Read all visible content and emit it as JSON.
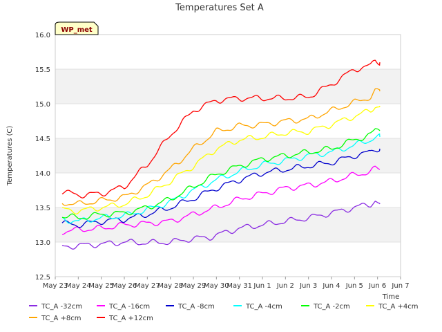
{
  "chart_data": {
    "type": "line",
    "title": "Temperatures Set A",
    "ylabel": "Temperatures (C)",
    "xlabel": "Time",
    "badge": "WP_met",
    "ylim": [
      12.5,
      16.0
    ],
    "xlim": [
      0,
      15
    ],
    "yticks": [
      12.5,
      13.0,
      13.5,
      14.0,
      14.5,
      15.0,
      15.5,
      16.0
    ],
    "xtick_labels": [
      "May 23",
      "May 24",
      "May 25",
      "May 26",
      "May 27",
      "May 28",
      "May 29",
      "May 30",
      "May 31",
      "Jun 1",
      "Jun 2",
      "Jun 3",
      "Jun 4",
      "Jun 5",
      "Jun 6",
      "Jun 7"
    ],
    "grid": true,
    "legend_position": "bottom",
    "series": [
      {
        "name": "TC_A -32cm",
        "color": "#8a2be2",
        "x": [
          0.3,
          1,
          2,
          3,
          4,
          5,
          6,
          6.7,
          7,
          8,
          9,
          10,
          11,
          12,
          13,
          13.7,
          13.9,
          14.1
        ],
        "y": [
          12.93,
          12.95,
          12.97,
          13.0,
          12.99,
          13.0,
          13.05,
          13.07,
          13.1,
          13.2,
          13.25,
          13.3,
          13.35,
          13.42,
          13.5,
          13.55,
          13.6,
          13.55
        ]
      },
      {
        "name": "TC_A -16cm",
        "color": "#ff00ff",
        "x": [
          0.3,
          1,
          2,
          3,
          4,
          5,
          6,
          7,
          8,
          9,
          10,
          11,
          12,
          13,
          13.7,
          13.9,
          14.1
        ],
        "y": [
          13.15,
          13.18,
          13.2,
          13.25,
          13.27,
          13.3,
          13.4,
          13.5,
          13.62,
          13.7,
          13.78,
          13.82,
          13.88,
          13.97,
          14.02,
          14.06,
          14.05
        ]
      },
      {
        "name": "TC_A -8cm",
        "color": "#0000cd",
        "x": [
          0.3,
          1,
          2,
          3,
          4,
          5,
          6,
          7,
          8,
          9,
          10,
          11,
          12,
          13,
          13.7,
          13.9,
          14.1
        ],
        "y": [
          13.27,
          13.25,
          13.3,
          13.33,
          13.4,
          13.5,
          13.63,
          13.78,
          13.9,
          14.0,
          14.05,
          14.1,
          14.15,
          14.25,
          14.3,
          14.35,
          14.35
        ]
      },
      {
        "name": "TC_A -4cm",
        "color": "#00ffff",
        "x": [
          0.3,
          1,
          2,
          3,
          4,
          5,
          6,
          7,
          8,
          9,
          10,
          11,
          12,
          13,
          13.7,
          13.9,
          14.1
        ],
        "y": [
          13.33,
          13.3,
          13.35,
          13.38,
          13.47,
          13.58,
          13.75,
          13.9,
          14.02,
          14.12,
          14.18,
          14.25,
          14.3,
          14.4,
          14.48,
          14.52,
          14.52
        ]
      },
      {
        "name": "TC_A -2cm",
        "color": "#00ff00",
        "x": [
          0.3,
          1,
          2,
          3,
          4,
          5,
          6,
          7,
          8,
          9,
          10,
          11,
          12,
          13,
          13.7,
          13.9,
          14.1
        ],
        "y": [
          13.38,
          13.35,
          13.4,
          13.42,
          13.5,
          13.62,
          13.8,
          13.98,
          14.1,
          14.2,
          14.25,
          14.3,
          14.35,
          14.48,
          14.55,
          14.62,
          14.62
        ]
      },
      {
        "name": "TC_A +4cm",
        "color": "#ffff00",
        "x": [
          0.3,
          1,
          2,
          3,
          4,
          5,
          6,
          7,
          8,
          9,
          10,
          11,
          12,
          13,
          13.7,
          13.9,
          14.1
        ],
        "y": [
          13.47,
          13.45,
          13.5,
          13.55,
          13.68,
          13.88,
          14.1,
          14.35,
          14.48,
          14.52,
          14.58,
          14.6,
          14.7,
          14.82,
          14.9,
          14.97,
          14.97
        ]
      },
      {
        "name": "TC_A +8cm",
        "color": "#ffa500",
        "x": [
          0.3,
          1,
          2,
          3,
          4,
          5,
          6,
          7,
          8,
          9,
          10,
          11,
          12,
          13,
          13.7,
          13.9,
          14.1
        ],
        "y": [
          13.57,
          13.55,
          13.6,
          13.65,
          13.82,
          14.05,
          14.35,
          14.6,
          14.68,
          14.7,
          14.75,
          14.78,
          14.9,
          15.02,
          15.1,
          15.18,
          15.18
        ]
      },
      {
        "name": "TC_A +12cm",
        "color": "#ff0000",
        "x": [
          0.3,
          1,
          2,
          3,
          4,
          5,
          6,
          7,
          8,
          9,
          10,
          11,
          12,
          13,
          13.7,
          13.9,
          14.1
        ],
        "y": [
          13.73,
          13.68,
          13.7,
          13.8,
          14.12,
          14.55,
          14.9,
          15.05,
          15.08,
          15.08,
          15.08,
          15.1,
          15.28,
          15.5,
          15.55,
          15.62,
          15.6
        ]
      }
    ]
  }
}
